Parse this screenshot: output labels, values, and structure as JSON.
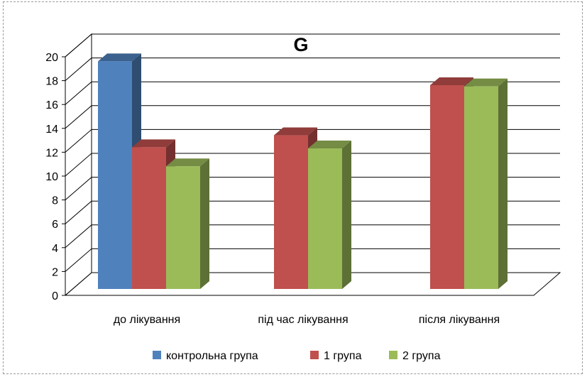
{
  "chart_data": {
    "type": "bar",
    "title": "G",
    "categories": [
      "до лікування",
      "під час лікування",
      "після лікування"
    ],
    "series": [
      {
        "name": "контрольна група",
        "color": "#4F81BD",
        "values": [
          19.5,
          null,
          null
        ]
      },
      {
        "name": "1 група",
        "color": "#C0504D",
        "values": [
          12.3,
          13.3,
          17.5
        ]
      },
      {
        "name": "2 група",
        "color": "#9BBB59",
        "values": [
          10.7,
          12.2,
          17.4
        ]
      }
    ],
    "y_ticks": [
      "0",
      "2",
      "4",
      "6",
      "8",
      "10",
      "12",
      "14",
      "16",
      "18",
      "20"
    ],
    "ylim": [
      0,
      20
    ],
    "grid": true,
    "legend_position": "bottom",
    "style": "3d-clustered-column"
  }
}
